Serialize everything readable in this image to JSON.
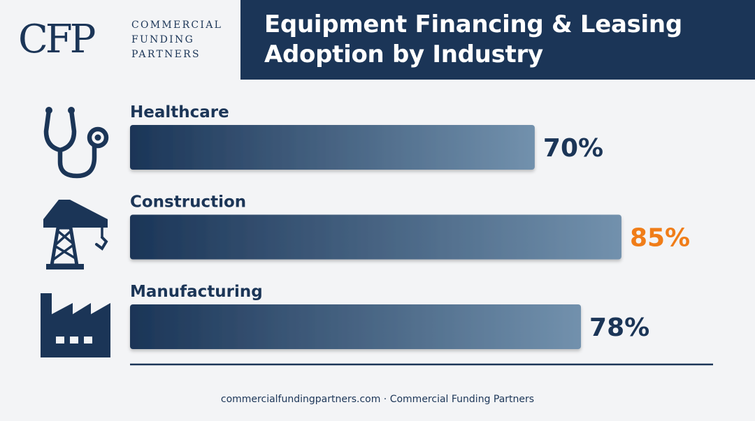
{
  "brand": {
    "logo_mark": "CFP",
    "logo_lines": [
      "COMMERCIAL",
      "FUNDING",
      "PARTNERS"
    ]
  },
  "header": {
    "title_line1": "Equipment Financing & Leasing",
    "title_line2": "Adoption by Industry"
  },
  "colors": {
    "navy": "#1b3557",
    "bar_start": "#1b3557",
    "bar_end": "#7291ad",
    "highlight": "#f07d18",
    "background": "#f3f4f6"
  },
  "chart_data": {
    "type": "bar",
    "orientation": "horizontal",
    "categories": [
      "Healthcare",
      "Construction",
      "Manufacturing"
    ],
    "values": [
      70,
      85,
      78
    ],
    "value_labels": [
      "70%",
      "85%",
      "78%"
    ],
    "highlight_index": 1,
    "icons": [
      "stethoscope-icon",
      "crane-icon",
      "factory-icon"
    ],
    "xlim": [
      0,
      100
    ]
  },
  "footer": {
    "text": "commercialfundingpartners.com · Commercial Funding Partners"
  }
}
